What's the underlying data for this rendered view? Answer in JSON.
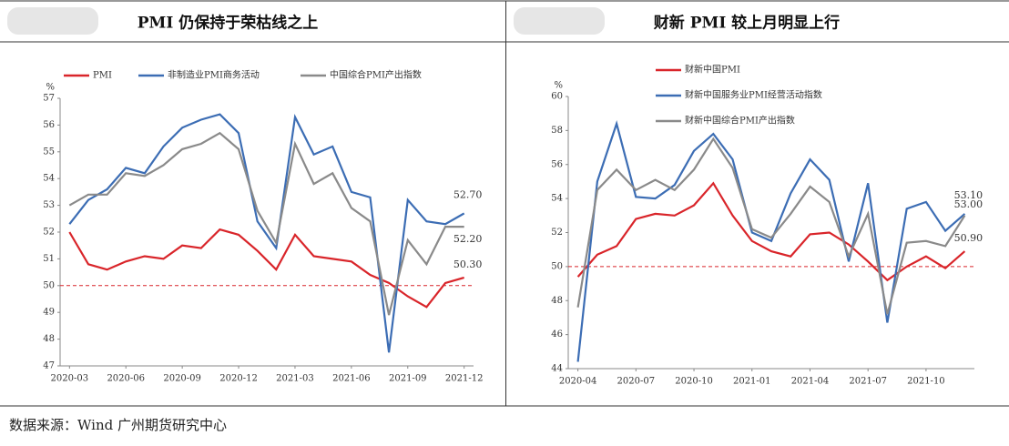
{
  "chart_data": [
    {
      "type": "line",
      "title": "PMI 仍保持于荣枯线之上",
      "y_unit": "%",
      "categories": [
        "2020-03",
        null,
        null,
        "2020-06",
        null,
        null,
        "2020-09",
        null,
        null,
        "2020-12",
        null,
        null,
        "2021-03",
        null,
        null,
        "2021-06",
        null,
        null,
        "2021-09",
        null,
        null,
        "2021-12"
      ],
      "series": [
        {
          "name": "PMI",
          "color": "#d9252a",
          "values": [
            52.0,
            50.8,
            50.6,
            50.9,
            51.1,
            51.0,
            51.5,
            51.4,
            52.1,
            51.9,
            51.3,
            50.6,
            51.9,
            51.1,
            51.0,
            50.9,
            50.4,
            50.1,
            49.6,
            49.2,
            50.1,
            50.3
          ],
          "value_labels": [
            null,
            null,
            null,
            null,
            null,
            null,
            null,
            null,
            null,
            null,
            null,
            null,
            null,
            null,
            null,
            null,
            null,
            null,
            null,
            null,
            null,
            "50.30"
          ]
        },
        {
          "name": "非制造业PMI商务活动",
          "color": "#3c6db4",
          "values": [
            52.3,
            53.2,
            53.6,
            54.4,
            54.2,
            55.2,
            55.9,
            56.2,
            56.4,
            55.7,
            52.4,
            51.4,
            56.3,
            54.9,
            55.2,
            53.5,
            53.3,
            47.5,
            53.2,
            52.4,
            52.3,
            52.7
          ],
          "value_labels": [
            null,
            null,
            null,
            null,
            null,
            null,
            null,
            null,
            null,
            null,
            null,
            null,
            null,
            null,
            null,
            null,
            null,
            null,
            null,
            null,
            null,
            "52.70"
          ]
        },
        {
          "name": "中国综合PMI产出指数",
          "color": "#8a8a8a",
          "values": [
            53.0,
            53.4,
            53.4,
            54.2,
            54.1,
            54.5,
            55.1,
            55.3,
            55.7,
            55.1,
            52.8,
            51.6,
            55.3,
            53.8,
            54.2,
            52.9,
            52.4,
            48.9,
            51.7,
            50.8,
            52.2,
            52.2
          ],
          "value_labels": [
            null,
            null,
            null,
            null,
            null,
            null,
            null,
            null,
            null,
            null,
            null,
            null,
            null,
            null,
            null,
            null,
            null,
            null,
            null,
            null,
            null,
            "52.20"
          ]
        }
      ],
      "ylim": [
        47,
        57
      ],
      "yticks": [
        47,
        48,
        49,
        50,
        51,
        52,
        53,
        54,
        55,
        56,
        57
      ],
      "reference_line": 50
    },
    {
      "type": "line",
      "title": "财新 PMI 较上月明显上行",
      "y_unit": "%",
      "categories": [
        "2020-04",
        null,
        null,
        "2020-07",
        null,
        null,
        "2020-10",
        null,
        null,
        "2021-01",
        null,
        null,
        "2021-04",
        null,
        null,
        "2021-07",
        null,
        null,
        "2021-10",
        null,
        null
      ],
      "series": [
        {
          "name": "财新中国PMI",
          "color": "#d9252a",
          "values": [
            49.4,
            50.7,
            51.2,
            52.8,
            53.1,
            53.0,
            53.6,
            54.9,
            53.0,
            51.5,
            50.9,
            50.6,
            51.9,
            52.0,
            51.3,
            50.3,
            49.2,
            50.0,
            50.6,
            49.9,
            50.9
          ],
          "value_labels": [
            null,
            null,
            null,
            null,
            null,
            null,
            null,
            null,
            null,
            null,
            null,
            null,
            null,
            null,
            null,
            null,
            null,
            null,
            null,
            null,
            "50.90"
          ]
        },
        {
          "name": "财新中国服务业PMI经营活动指数",
          "color": "#3c6db4",
          "values": [
            44.4,
            55.0,
            58.4,
            54.1,
            54.0,
            54.8,
            56.8,
            57.8,
            56.3,
            52.0,
            51.5,
            54.3,
            56.3,
            55.1,
            50.3,
            54.9,
            46.7,
            53.4,
            53.8,
            52.1,
            53.1
          ],
          "value_labels": [
            null,
            null,
            null,
            null,
            null,
            null,
            null,
            null,
            null,
            null,
            null,
            null,
            null,
            null,
            null,
            null,
            null,
            null,
            null,
            null,
            "53.10"
          ]
        },
        {
          "name": "财新中国综合PMI产出指数",
          "color": "#8a8a8a",
          "values": [
            47.6,
            54.5,
            55.7,
            54.5,
            55.1,
            54.5,
            55.7,
            57.5,
            55.8,
            52.2,
            51.7,
            53.1,
            54.7,
            53.8,
            50.6,
            53.1,
            47.2,
            51.4,
            51.5,
            51.2,
            53.0
          ],
          "value_labels": [
            null,
            null,
            null,
            null,
            null,
            null,
            null,
            null,
            null,
            null,
            null,
            null,
            null,
            null,
            null,
            null,
            null,
            null,
            null,
            null,
            "53.00"
          ]
        }
      ],
      "ylim": [
        44,
        60
      ],
      "yticks": [
        44,
        46,
        48,
        50,
        52,
        54,
        56,
        58,
        60
      ],
      "reference_line": 50
    }
  ],
  "source": "数据来源：Wind 广州期货研究中心"
}
